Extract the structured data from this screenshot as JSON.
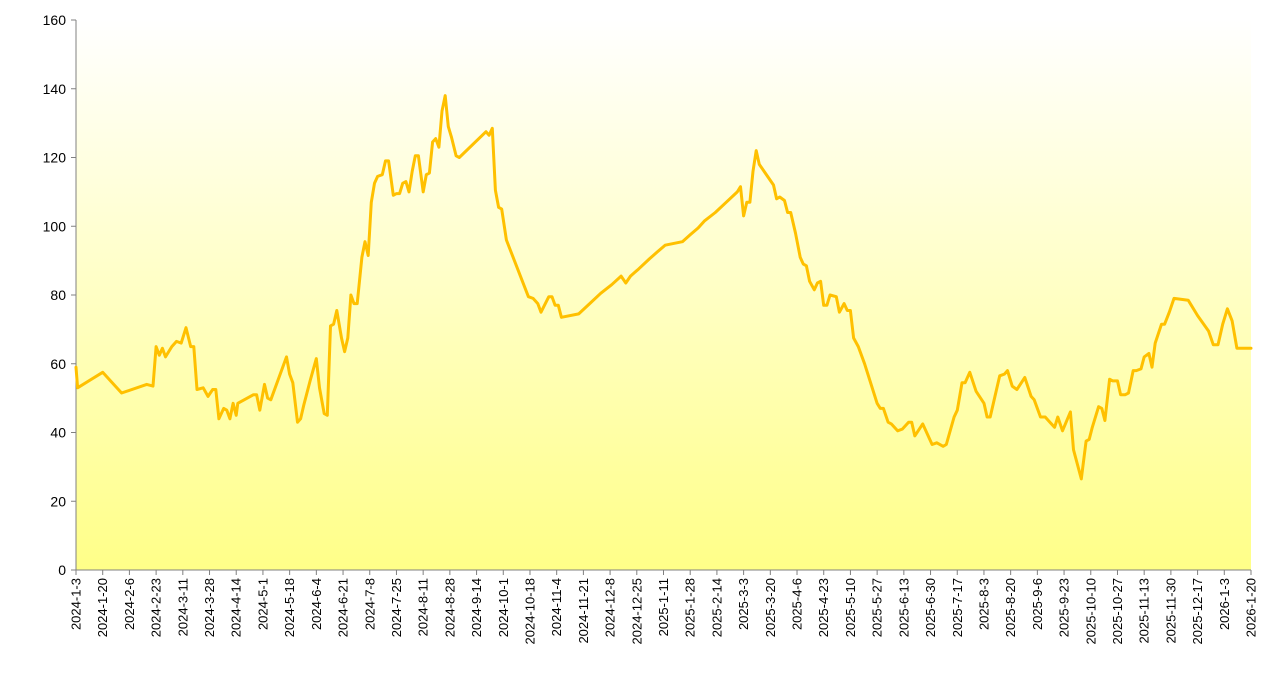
{
  "chart_data": {
    "type": "line",
    "title": "",
    "xlabel": "",
    "ylabel": "",
    "ylim": [
      0,
      160
    ],
    "yticks": [
      0,
      20,
      40,
      60,
      80,
      100,
      120,
      140,
      160
    ],
    "xlim": [
      "2024-1-3",
      "2026-1-20"
    ],
    "xticks": [
      "2024-1-3",
      "2024-1-20",
      "2024-2-6",
      "2024-2-23",
      "2024-3-11",
      "2024-3-28",
      "2024-4-14",
      "2024-5-1",
      "2024-5-18",
      "2024-6-4",
      "2024-6-21",
      "2024-7-8",
      "2024-7-25",
      "2024-8-11",
      "2024-8-28",
      "2024-9-14",
      "2024-10-1",
      "2024-10-18",
      "2024-11-4",
      "2024-11-21",
      "2024-12-8",
      "2024-12-25",
      "2025-1-11",
      "2025-1-28",
      "2025-2-14",
      "2025-3-3",
      "2025-3-20",
      "2025-4-6",
      "2025-4-23",
      "2025-5-10",
      "2025-5-27",
      "2025-6-13",
      "2025-6-30",
      "2025-7-17",
      "2025-8-3",
      "2025-8-20",
      "2025-9-6",
      "2025-9-23",
      "2025-10-10",
      "2025-10-27",
      "2025-11-13",
      "2025-11-30",
      "2025-12-17",
      "2026-1-3",
      "2026-1-20"
    ],
    "grid": false,
    "legend": "none",
    "colors": {
      "line": "#FFC000",
      "fill_top": "#FFFFFF",
      "fill_bottom": "#FFFF88",
      "axis": "#808080"
    },
    "series": [
      {
        "values": [
          [
            "2024-1-3",
            59
          ],
          [
            "2024-1-4",
            53
          ],
          [
            "2024-1-20",
            57.5
          ],
          [
            "2024-2-1",
            51.5
          ],
          [
            "2024-2-17",
            54
          ],
          [
            "2024-2-21",
            53.5
          ],
          [
            "2024-2-23",
            65
          ],
          [
            "2024-2-25",
            62.5
          ],
          [
            "2024-2-27",
            64.5
          ],
          [
            "2024-2-29",
            62
          ],
          [
            "2024-3-4",
            65
          ],
          [
            "2024-3-7",
            66.5
          ],
          [
            "2024-3-10",
            66
          ],
          [
            "2024-3-13",
            70.5
          ],
          [
            "2024-3-16",
            65
          ],
          [
            "2024-3-18",
            65
          ],
          [
            "2024-3-20",
            52.5
          ],
          [
            "2024-3-24",
            53
          ],
          [
            "2024-3-27",
            50.5
          ],
          [
            "2024-3-30",
            52.5
          ],
          [
            "2024-4-1",
            52.5
          ],
          [
            "2024-4-3",
            44
          ],
          [
            "2024-4-6",
            47
          ],
          [
            "2024-4-8",
            46.5
          ],
          [
            "2024-4-10",
            44
          ],
          [
            "2024-4-12",
            48.5
          ],
          [
            "2024-4-14",
            45
          ],
          [
            "2024-4-15",
            48.5
          ],
          [
            "2024-4-25",
            51
          ],
          [
            "2024-4-27",
            51
          ],
          [
            "2024-4-29",
            46.5
          ],
          [
            "2024-5-2",
            54
          ],
          [
            "2024-5-4",
            50
          ],
          [
            "2024-5-6",
            49.5
          ],
          [
            "2024-5-16",
            62
          ],
          [
            "2024-5-18",
            57
          ],
          [
            "2024-5-20",
            54.5
          ],
          [
            "2024-5-23",
            43
          ],
          [
            "2024-5-25",
            44
          ],
          [
            "2024-5-27",
            48
          ],
          [
            "2024-5-31",
            55
          ],
          [
            "2024-6-4",
            61.5
          ],
          [
            "2024-6-6",
            53
          ],
          [
            "2024-6-9",
            45.5
          ],
          [
            "2024-6-11",
            45
          ],
          [
            "2024-6-13",
            71
          ],
          [
            "2024-6-15",
            71.5
          ],
          [
            "2024-6-17",
            75.5
          ],
          [
            "2024-6-20",
            67.5
          ],
          [
            "2024-6-22",
            63.5
          ],
          [
            "2024-6-24",
            67.5
          ],
          [
            "2024-6-26",
            80
          ],
          [
            "2024-6-28",
            77.5
          ],
          [
            "2024-6-30",
            77.5
          ],
          [
            "2024-7-3",
            91
          ],
          [
            "2024-7-5",
            95.5
          ],
          [
            "2024-7-7",
            91.5
          ],
          [
            "2024-7-9",
            107
          ],
          [
            "2024-7-11",
            112.5
          ],
          [
            "2024-7-13",
            114.5
          ],
          [
            "2024-7-16",
            115
          ],
          [
            "2024-7-18",
            119
          ],
          [
            "2024-7-20",
            119
          ],
          [
            "2024-7-23",
            109
          ],
          [
            "2024-7-25",
            109.5
          ],
          [
            "2024-7-27",
            109.5
          ],
          [
            "2024-7-29",
            112.5
          ],
          [
            "2024-7-31",
            113
          ],
          [
            "2024-8-2",
            110
          ],
          [
            "2024-8-4",
            116
          ],
          [
            "2024-8-6",
            120.5
          ],
          [
            "2024-8-8",
            120.5
          ],
          [
            "2024-8-11",
            110
          ],
          [
            "2024-8-13",
            115
          ],
          [
            "2024-8-15",
            115.5
          ],
          [
            "2024-8-17",
            124.5
          ],
          [
            "2024-8-19",
            125.5
          ],
          [
            "2024-8-21",
            123
          ],
          [
            "2024-8-23",
            133.5
          ],
          [
            "2024-8-25",
            138
          ],
          [
            "2024-8-27",
            129
          ],
          [
            "2024-8-29",
            126
          ],
          [
            "2024-9-1",
            120.5
          ],
          [
            "2024-9-3",
            120
          ],
          [
            "2024-9-20",
            127.5
          ],
          [
            "2024-9-22",
            126.5
          ],
          [
            "2024-9-24",
            128.5
          ],
          [
            "2024-9-26",
            110.5
          ],
          [
            "2024-9-28",
            105.5
          ],
          [
            "2024-9-30",
            105
          ],
          [
            "2024-10-3",
            96
          ],
          [
            "2024-10-17",
            79.5
          ],
          [
            "2024-10-20",
            79
          ],
          [
            "2024-10-23",
            77.5
          ],
          [
            "2024-10-25",
            75
          ],
          [
            "2024-10-30",
            79.5
          ],
          [
            "2024-11-1",
            79.5
          ],
          [
            "2024-11-3",
            77
          ],
          [
            "2024-11-5",
            77
          ],
          [
            "2024-11-7",
            73.5
          ],
          [
            "2024-11-18",
            74.5
          ],
          [
            "2024-11-25",
            77.5
          ],
          [
            "2024-12-2",
            80.5
          ],
          [
            "2024-12-9",
            83
          ],
          [
            "2024-12-15",
            85.5
          ],
          [
            "2024-12-18",
            83.5
          ],
          [
            "2024-12-21",
            85.5
          ],
          [
            "2024-12-26",
            87.5
          ],
          [
            "2025-1-2",
            90.5
          ],
          [
            "2025-1-7",
            92.5
          ],
          [
            "2025-1-12",
            94.5
          ],
          [
            "2025-1-23",
            95.5
          ],
          [
            "2025-1-28",
            97.5
          ],
          [
            "2025-2-2",
            99.5
          ],
          [
            "2025-2-6",
            101.5
          ],
          [
            "2025-2-13",
            104
          ],
          [
            "2025-2-20",
            107
          ],
          [
            "2025-2-27",
            110
          ],
          [
            "2025-3-1",
            111.5
          ],
          [
            "2025-3-3",
            103
          ],
          [
            "2025-3-5",
            107
          ],
          [
            "2025-3-7",
            107
          ],
          [
            "2025-3-9",
            116
          ],
          [
            "2025-3-11",
            122
          ],
          [
            "2025-3-13",
            118
          ],
          [
            "2025-3-22",
            112
          ],
          [
            "2025-3-24",
            108
          ],
          [
            "2025-3-26",
            108.5
          ],
          [
            "2025-3-29",
            107.5
          ],
          [
            "2025-3-31",
            104
          ],
          [
            "2025-4-2",
            104
          ],
          [
            "2025-4-5",
            98
          ],
          [
            "2025-4-8",
            91
          ],
          [
            "2025-4-10",
            89
          ],
          [
            "2025-4-12",
            88.5
          ],
          [
            "2025-4-14",
            84
          ],
          [
            "2025-4-17",
            81.5
          ],
          [
            "2025-4-19",
            83.5
          ],
          [
            "2025-4-21",
            84
          ],
          [
            "2025-4-23",
            77
          ],
          [
            "2025-4-25",
            77
          ],
          [
            "2025-4-27",
            80
          ],
          [
            "2025-5-1",
            79.5
          ],
          [
            "2025-5-3",
            75
          ],
          [
            "2025-5-6",
            77.5
          ],
          [
            "2025-5-8",
            75.5
          ],
          [
            "2025-5-10",
            75.5
          ],
          [
            "2025-5-12",
            67.5
          ],
          [
            "2025-5-15",
            65
          ],
          [
            "2025-5-19",
            60
          ],
          [
            "2025-5-27",
            48.5
          ],
          [
            "2025-5-29",
            47
          ],
          [
            "2025-5-31",
            47
          ],
          [
            "2025-6-3",
            43
          ],
          [
            "2025-6-5",
            42.5
          ],
          [
            "2025-6-9",
            40.5
          ],
          [
            "2025-6-12",
            41
          ],
          [
            "2025-6-16",
            43
          ],
          [
            "2025-6-18",
            43
          ],
          [
            "2025-6-20",
            39
          ],
          [
            "2025-6-25",
            42.5
          ],
          [
            "2025-7-1",
            36.5
          ],
          [
            "2025-7-4",
            37
          ],
          [
            "2025-7-8",
            36
          ],
          [
            "2025-7-10",
            36.5
          ],
          [
            "2025-7-15",
            44.5
          ],
          [
            "2025-7-17",
            46.5
          ],
          [
            "2025-7-20",
            54.5
          ],
          [
            "2025-7-22",
            54.5
          ],
          [
            "2025-7-25",
            57.5
          ],
          [
            "2025-7-29",
            52
          ],
          [
            "2025-8-3",
            48.5
          ],
          [
            "2025-8-5",
            44.5
          ],
          [
            "2025-8-7",
            44.5
          ],
          [
            "2025-8-13",
            56.5
          ],
          [
            "2025-8-16",
            57
          ],
          [
            "2025-8-18",
            58
          ],
          [
            "2025-8-21",
            53.5
          ],
          [
            "2025-8-24",
            52.5
          ],
          [
            "2025-8-29",
            56
          ],
          [
            "2025-9-2",
            50.5
          ],
          [
            "2025-9-4",
            49.5
          ],
          [
            "2025-9-8",
            44.5
          ],
          [
            "2025-9-11",
            44.5
          ],
          [
            "2025-9-14",
            43
          ],
          [
            "2025-9-17",
            41.5
          ],
          [
            "2025-9-19",
            44.5
          ],
          [
            "2025-9-22",
            40.5
          ],
          [
            "2025-9-27",
            46
          ],
          [
            "2025-9-29",
            35
          ],
          [
            "2025-10-4",
            26.5
          ],
          [
            "2025-10-7",
            37.5
          ],
          [
            "2025-10-9",
            38
          ],
          [
            "2025-10-11",
            41.5
          ],
          [
            "2025-10-15",
            47.5
          ],
          [
            "2025-10-17",
            47
          ],
          [
            "2025-10-19",
            43.5
          ],
          [
            "2025-10-22",
            55.5
          ],
          [
            "2025-10-24",
            55
          ],
          [
            "2025-10-27",
            55
          ],
          [
            "2025-10-29",
            51
          ],
          [
            "2025-11-1",
            51
          ],
          [
            "2025-11-3",
            51.5
          ],
          [
            "2025-11-6",
            58
          ],
          [
            "2025-11-8",
            58
          ],
          [
            "2025-11-11",
            58.5
          ],
          [
            "2025-11-13",
            62
          ],
          [
            "2025-11-16",
            63
          ],
          [
            "2025-11-18",
            59
          ],
          [
            "2025-11-20",
            66
          ],
          [
            "2025-11-24",
            71.5
          ],
          [
            "2025-11-26",
            71.5
          ],
          [
            "2025-11-29",
            75
          ],
          [
            "2025-12-2",
            79
          ],
          [
            "2025-12-11",
            78.5
          ],
          [
            "2025-12-17",
            74
          ],
          [
            "2025-12-24",
            69.5
          ],
          [
            "2025-12-27",
            65.5
          ],
          [
            "2025-12-30",
            65.5
          ],
          [
            "2026-1-2",
            71.5
          ],
          [
            "2026-1-5",
            76
          ],
          [
            "2026-1-8",
            72.5
          ],
          [
            "2026-1-11",
            64.5
          ],
          [
            "2026-1-17",
            64.5
          ],
          [
            "2026-1-20",
            64.5
          ]
        ]
      }
    ]
  }
}
